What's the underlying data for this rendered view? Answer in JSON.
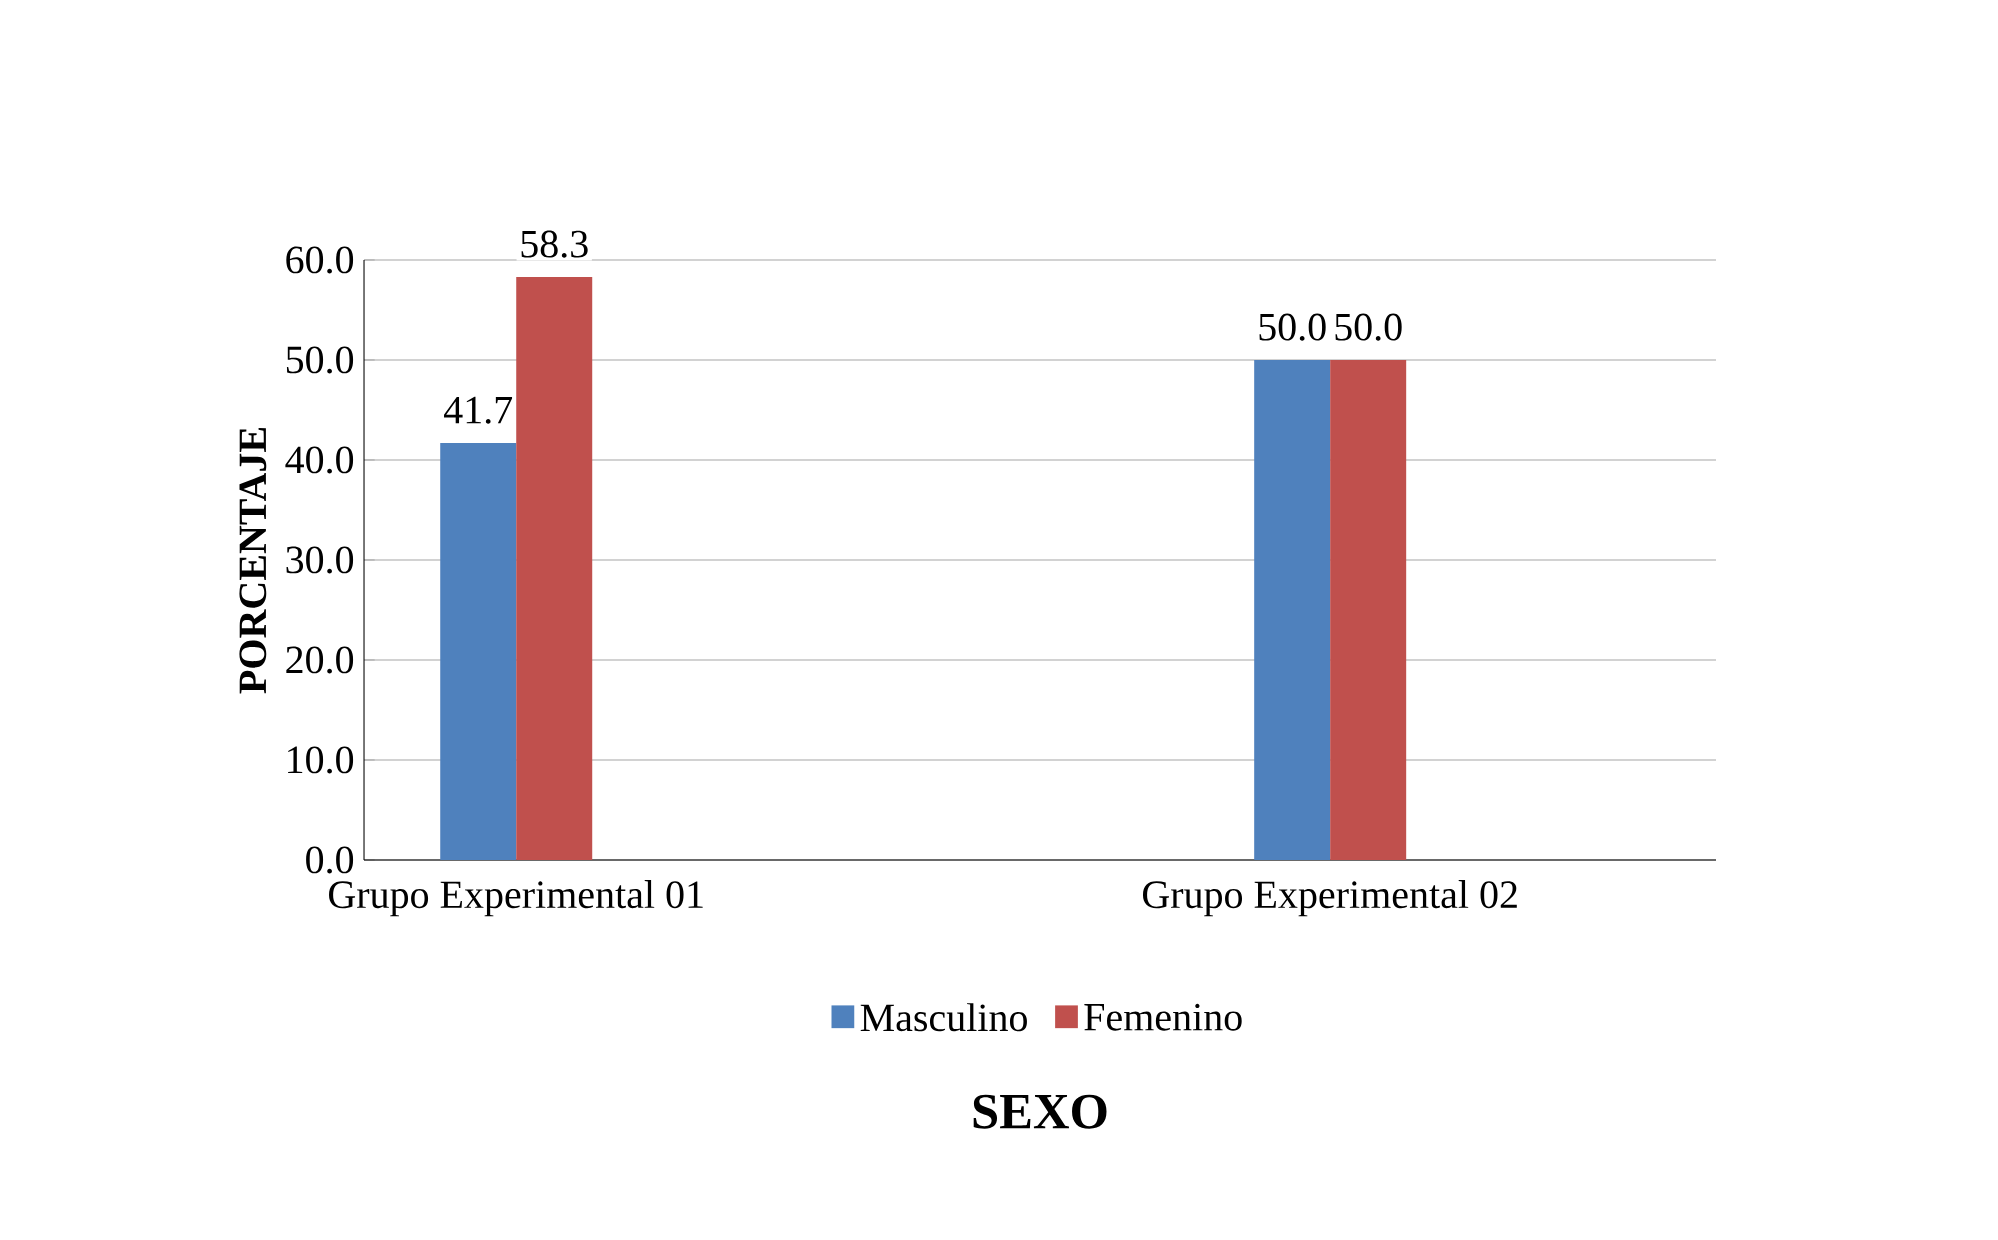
{
  "chart_data": {
    "type": "bar",
    "categories": [
      "Grupo Experimental 01",
      "Grupo Experimental 02"
    ],
    "series": [
      {
        "name": "Masculino",
        "color": "#4f81bd",
        "values": [
          41.7,
          50.0
        ],
        "value_labels": [
          "41.7",
          "50.0"
        ]
      },
      {
        "name": "Femenino",
        "color": "#c0504d",
        "values": [
          58.3,
          50.0
        ],
        "value_labels": [
          "58.3",
          "50.0"
        ]
      }
    ],
    "ylim": [
      0,
      60
    ],
    "yticks": [
      {
        "value": 0,
        "label": "0.0"
      },
      {
        "value": 10,
        "label": "10.0"
      },
      {
        "value": 20,
        "label": "20.0"
      },
      {
        "value": 30,
        "label": "30.0"
      },
      {
        "value": 40,
        "label": "40.0"
      },
      {
        "value": 50,
        "label": "50.0"
      },
      {
        "value": 60,
        "label": "60.0"
      }
    ],
    "ylabel": "PORCENTAJE",
    "xlabel": "SEXO",
    "grid": "y",
    "legend": "bottom"
  }
}
